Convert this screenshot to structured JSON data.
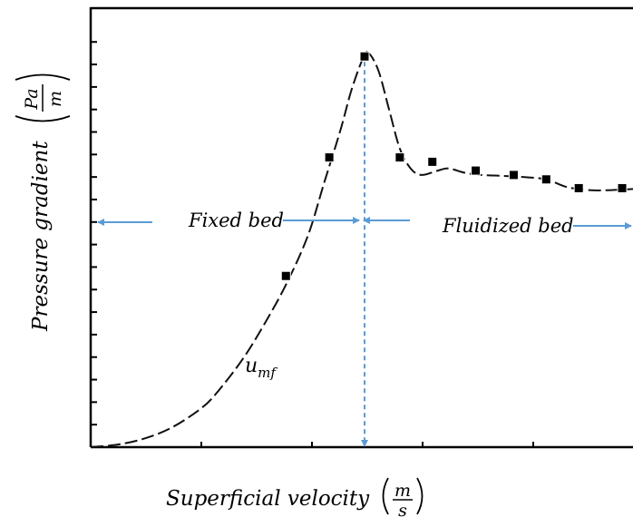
{
  "chart_data": {
    "type": "line",
    "title": "",
    "xlabel": "Superficial velocity",
    "xlabel_unit_num": "m",
    "xlabel_unit_den": "s",
    "ylabel": "Pressure gradient",
    "ylabel_unit_num": "Pa",
    "ylabel_unit_den": "m",
    "xlim": [
      0,
      10
    ],
    "ylim": [
      0,
      10
    ],
    "grid": false,
    "series": [
      {
        "curve": [
          [
            0.0,
            0.0
          ],
          [
            0.5,
            0.06
          ],
          [
            1.0,
            0.2
          ],
          [
            1.5,
            0.45
          ],
          [
            2.0,
            0.85
          ],
          [
            2.3,
            1.2
          ],
          [
            2.8,
            2.0
          ],
          [
            3.2,
            2.8
          ],
          [
            3.6,
            3.7
          ],
          [
            4.0,
            4.8
          ],
          [
            4.3,
            6.0
          ],
          [
            4.6,
            7.2
          ],
          [
            4.8,
            8.1
          ],
          [
            5.0,
            8.8
          ],
          [
            5.1,
            9.0
          ],
          [
            5.3,
            8.6
          ],
          [
            5.5,
            7.7
          ],
          [
            5.7,
            6.8
          ],
          [
            5.9,
            6.35
          ],
          [
            6.1,
            6.2
          ],
          [
            6.4,
            6.3
          ],
          [
            6.6,
            6.35
          ],
          [
            6.9,
            6.25
          ],
          [
            7.2,
            6.2
          ],
          [
            7.6,
            6.18
          ],
          [
            8.0,
            6.15
          ],
          [
            8.4,
            6.1
          ],
          [
            8.8,
            5.92
          ],
          [
            9.3,
            5.85
          ],
          [
            10.0,
            5.88
          ]
        ],
        "markers": [
          [
            3.6,
            3.9
          ],
          [
            4.4,
            6.6
          ],
          [
            5.05,
            8.9
          ],
          [
            5.7,
            6.6
          ],
          [
            6.3,
            6.5
          ],
          [
            7.1,
            6.3
          ],
          [
            7.8,
            6.2
          ],
          [
            8.4,
            6.1
          ],
          [
            9.0,
            5.9
          ],
          [
            9.8,
            5.9
          ]
        ]
      }
    ],
    "umf_x": 5.05,
    "annotations": {
      "fixed_bed": "Fixed bed",
      "fluidized_bed": "Fluidized bed",
      "umf_main": "u",
      "umf_sub": "mf"
    },
    "colors": {
      "axis": "#000000",
      "curve": "#111111",
      "arrow": "#5b9bd5"
    }
  }
}
